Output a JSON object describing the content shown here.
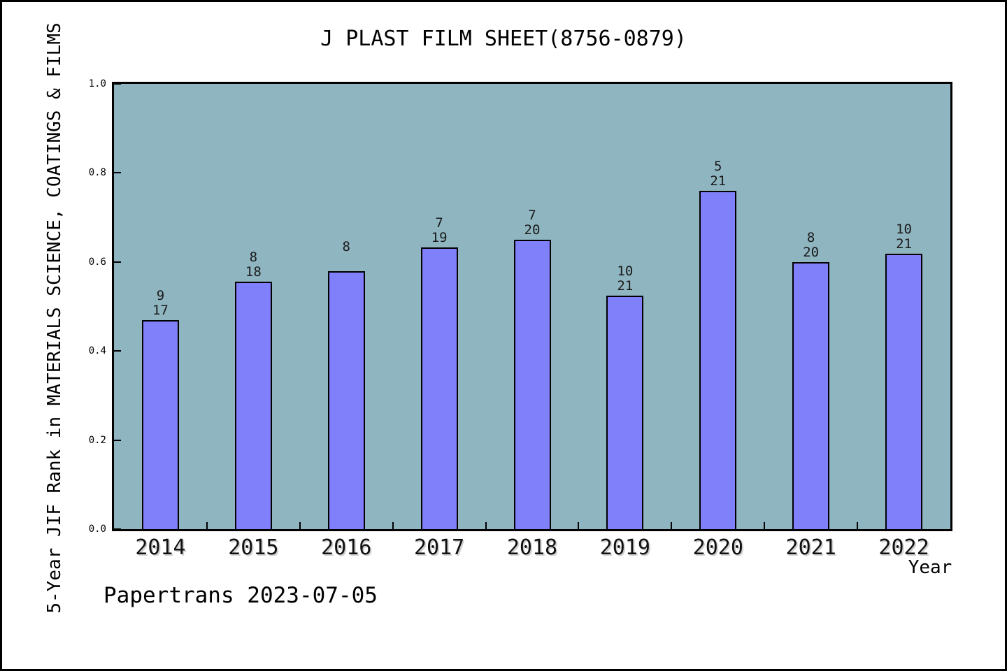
{
  "chart_data": {
    "type": "bar",
    "title": "J PLAST FILM SHEET(8756-0879)",
    "xlabel": "Year",
    "ylabel": "5-Year JIF Rank in MATERIALS SCIENCE, COATINGS & FILMS",
    "footer": "Papertrans 2023-07-05",
    "categories": [
      "2014",
      "2015",
      "2016",
      "2017",
      "2018",
      "2019",
      "2020",
      "2021",
      "2022"
    ],
    "values": [
      0.47,
      0.555,
      0.579,
      0.632,
      0.65,
      0.524,
      0.76,
      0.6,
      0.619
    ],
    "bar_labels": [
      [
        "9",
        "17"
      ],
      [
        "8",
        "18"
      ],
      [
        "8",
        ""
      ],
      [
        "7",
        "19"
      ],
      [
        "7",
        "20"
      ],
      [
        "10",
        "21"
      ],
      [
        "5",
        "21"
      ],
      [
        "8",
        "20"
      ],
      [
        "10",
        "21"
      ]
    ],
    "ylim": [
      0.0,
      1.0
    ],
    "yticks": [
      0.0,
      0.2,
      0.4,
      0.6,
      0.8,
      1.0
    ],
    "ytick_labels": [
      "0.0",
      "0.2",
      "0.4",
      "0.6",
      "0.8",
      "1.0"
    ],
    "grid": false,
    "legend": null,
    "colors": {
      "bar_fill": "#8080FA",
      "bar_edge": "#000000",
      "plot_bg": "#8FB5C1",
      "text": "#000000",
      "frame": "#000000",
      "page_bg": "#FFFFFF"
    }
  }
}
